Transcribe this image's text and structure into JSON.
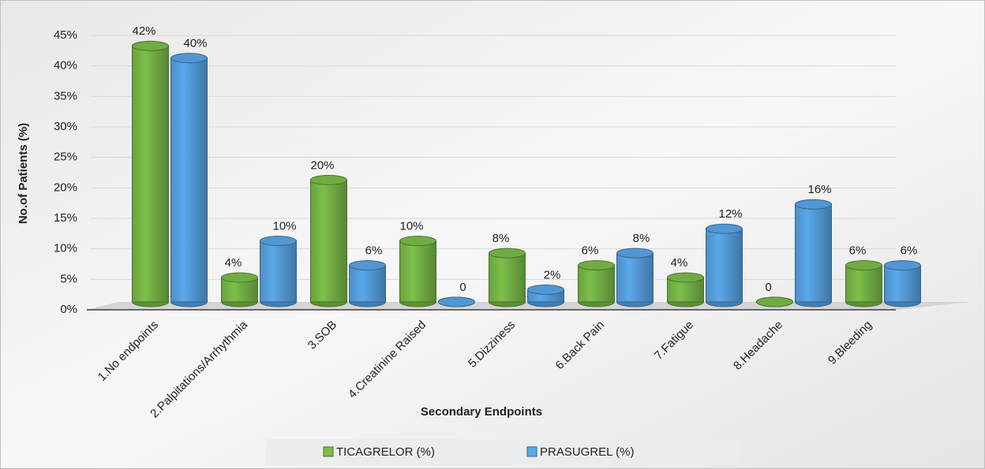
{
  "chart_data": {
    "type": "bar3d",
    "xlabel": "Secondary Endpoints",
    "ylabel": "No.of Patients (%)",
    "categories": [
      "1.No endpoints",
      "2.Palpitations/Arrhythmia",
      "3.SOB",
      "4.Creatinine Raised",
      "5.Dizziness",
      "6.Back Pain",
      "7.Fatigue",
      "8.Headache",
      "9.Bleeding"
    ],
    "series": [
      {
        "name": "TICAGRELOR (%)",
        "color": "#7cbf4a",
        "values": [
          42,
          4,
          20,
          10,
          8,
          6,
          4,
          0,
          6
        ],
        "value_labels": [
          "42%",
          "4%",
          "20%",
          "10%",
          "8%",
          "6%",
          "4%",
          "0",
          "6%"
        ]
      },
      {
        "name": "PRASUGREL (%)",
        "color": "#5aa8ea",
        "values": [
          40,
          10,
          6,
          0,
          2,
          8,
          12,
          16,
          6
        ],
        "value_labels": [
          "40%",
          "10%",
          "6%",
          "0",
          "2%",
          "8%",
          "12%",
          "16%",
          "6%"
        ]
      }
    ],
    "ylim": [
      0,
      45
    ],
    "yticks": [
      {
        "value": 0,
        "label": "0%"
      },
      {
        "value": 5,
        "label": "5%"
      },
      {
        "value": 10,
        "label": "10%"
      },
      {
        "value": 15,
        "label": "15%"
      },
      {
        "value": 20,
        "label": "20%"
      },
      {
        "value": 25,
        "label": "25%"
      },
      {
        "value": 30,
        "label": "30%"
      },
      {
        "value": 35,
        "label": "35%"
      },
      {
        "value": 40,
        "label": "40%"
      },
      {
        "value": 45,
        "label": "45%"
      }
    ],
    "grid": true,
    "legend": "bottom"
  }
}
